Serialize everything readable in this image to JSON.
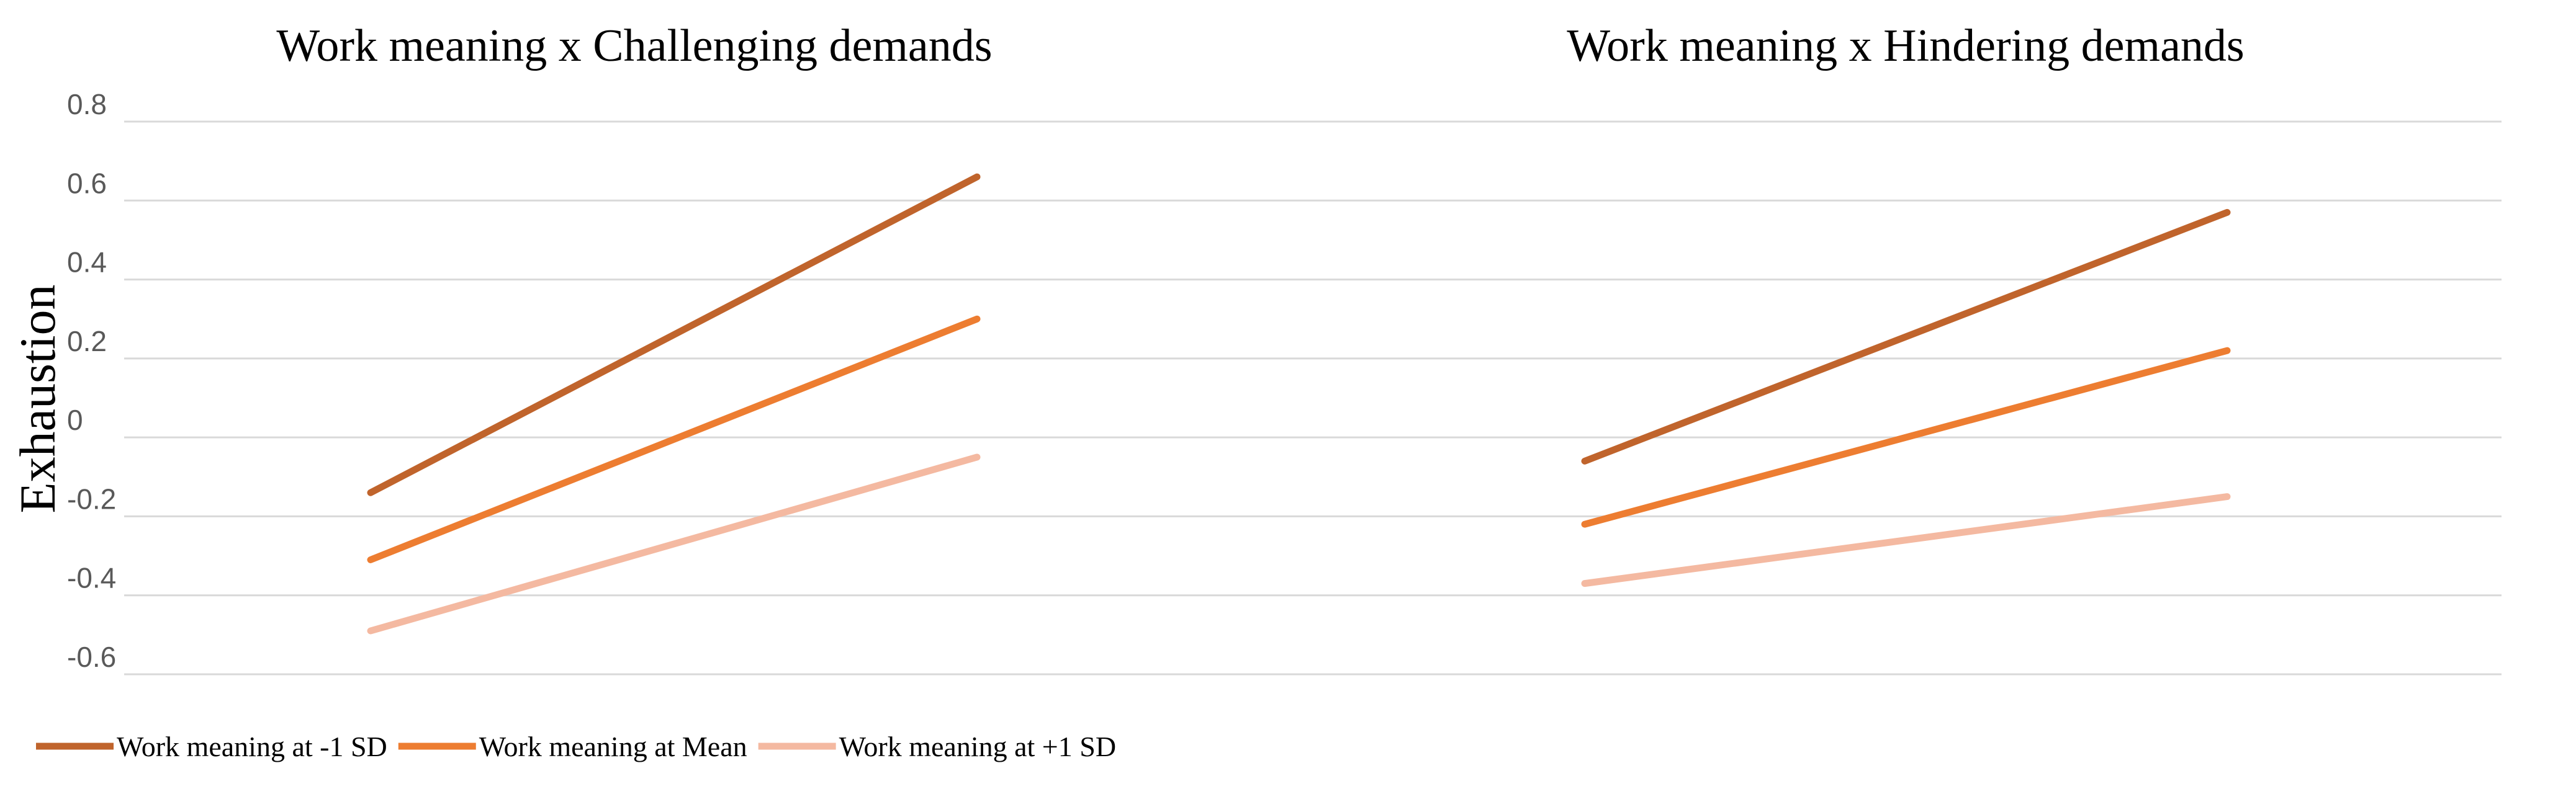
{
  "chart_data": {
    "type": "line",
    "ylabel": "Exhaustion",
    "ylim": [
      -0.6,
      0.8
    ],
    "yticks": [
      -0.6,
      -0.4,
      -0.2,
      0,
      0.2,
      0.4,
      0.6,
      0.8
    ],
    "ytick_labels": [
      "-0.6",
      "-0.4",
      "-0.2",
      "0",
      "0.2",
      "0.4",
      "0.6",
      "0.8"
    ],
    "grid": true,
    "legend_position": "bottom-left",
    "series_colors": [
      "#c0642c",
      "#ed7d31",
      "#f4b9a1"
    ],
    "legend": [
      "Work meaning at -1 SD",
      "Work meaning at Mean",
      "Work meaning at +1 SD"
    ],
    "panels": [
      {
        "title": "Work meaning x Challenging demands",
        "series": [
          {
            "name": "Work meaning at -1 SD",
            "values": [
              -0.14,
              0.66
            ]
          },
          {
            "name": "Work meaning at Mean",
            "values": [
              -0.31,
              0.3
            ]
          },
          {
            "name": "Work meaning at +1 SD",
            "values": [
              -0.49,
              -0.05
            ]
          }
        ]
      },
      {
        "title": "Work meaning x Hindering demands",
        "series": [
          {
            "name": "Work meaning at -1 SD",
            "values": [
              -0.06,
              0.57
            ]
          },
          {
            "name": "Work meaning at Mean",
            "values": [
              -0.22,
              0.22
            ]
          },
          {
            "name": "Work meaning at +1 SD",
            "values": [
              -0.37,
              -0.15
            ]
          }
        ]
      }
    ]
  }
}
